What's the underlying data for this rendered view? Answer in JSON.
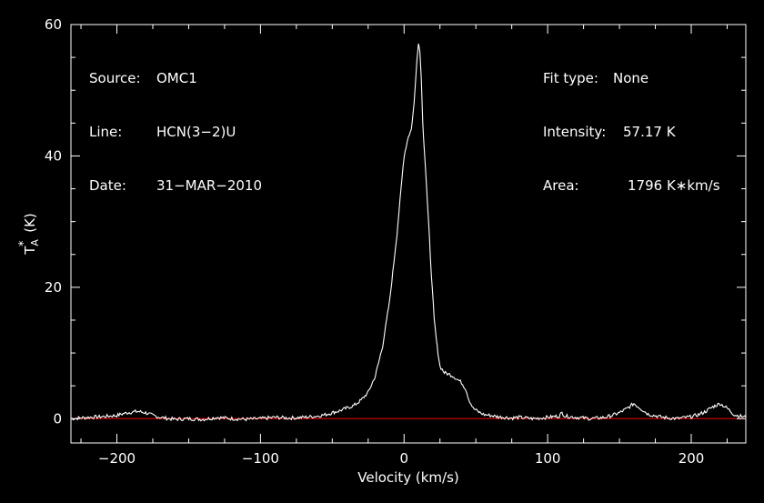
{
  "chart_data": {
    "type": "line",
    "xlabel": "Velocity (km/s)",
    "ylabel": "T_A^* (K)",
    "xlim": [
      -232,
      238
    ],
    "ylim": [
      -3.7,
      60
    ],
    "x_ticks": [
      -200,
      -100,
      0,
      100,
      200
    ],
    "y_ticks": [
      0,
      20,
      40,
      60
    ],
    "x_tick_labels": [
      "−200",
      "−100",
      "0",
      "100",
      "200"
    ],
    "y_tick_labels": [
      "0",
      "20",
      "40",
      "60"
    ],
    "grid": false,
    "baseline": 0,
    "series": [
      {
        "x": [
          -232,
          -220,
          -210,
          -200,
          -195,
          -190,
          -185,
          -180,
          -175,
          -170,
          -160,
          -150,
          -140,
          -130,
          -120,
          -110,
          -100,
          -90,
          -80,
          -70,
          -60,
          -55,
          -50,
          -45,
          -40,
          -35,
          -30,
          -25,
          -20,
          -15,
          -10,
          -5,
          0,
          3,
          5,
          7,
          9,
          10,
          11,
          12,
          13,
          15,
          17,
          19,
          21,
          23,
          25,
          28,
          31,
          34,
          37,
          40,
          43,
          45,
          48,
          52,
          56,
          60,
          65,
          70,
          75,
          80,
          90,
          100,
          108,
          110,
          112,
          120,
          130,
          140,
          145,
          150,
          155,
          160,
          165,
          170,
          180,
          190,
          200,
          205,
          210,
          215,
          220,
          225,
          230,
          238
        ],
        "y": [
          0,
          0.2,
          0.3,
          0.5,
          0.8,
          1.0,
          1.1,
          0.9,
          0.5,
          0.2,
          -0.1,
          0,
          -0.1,
          0.2,
          0,
          -0.1,
          0,
          0.2,
          0.1,
          0.2,
          0.4,
          0.6,
          0.9,
          1.2,
          1.6,
          2.0,
          2.8,
          4.0,
          6.5,
          11,
          18,
          28,
          40,
          43,
          44,
          48,
          55,
          57.1,
          56,
          52,
          45,
          38,
          30,
          22,
          15,
          11,
          8,
          7,
          6.8,
          6.5,
          6,
          5.5,
          4.5,
          3,
          1.6,
          1,
          0.6,
          0.5,
          0.3,
          0.2,
          0.1,
          0.2,
          0,
          0.2,
          0.4,
          0.9,
          0.4,
          0.2,
          0,
          0.2,
          0.5,
          0.9,
          1.5,
          2.3,
          1.5,
          0.7,
          0.2,
          0,
          0.3,
          0.6,
          1.1,
          1.8,
          2.3,
          1.6,
          0.6,
          0.2
        ]
      }
    ]
  },
  "info_left": [
    {
      "label": "Source:",
      "value": "OMC1"
    },
    {
      "label": "Line:",
      "value": "HCN(3−2)U"
    },
    {
      "label": "Date:",
      "value": "31−MAR−2010"
    }
  ],
  "info_right": [
    {
      "label": "Fit type:",
      "value": "None"
    },
    {
      "label": "Intensity:",
      "value": "57.17 K"
    },
    {
      "label": "Area:",
      "value": "1796 K∗km/s"
    }
  ],
  "colors": {
    "background": "#000000",
    "frame": "#ffffff",
    "spectrum": "#ffffff",
    "baseline": "#cc0000"
  }
}
